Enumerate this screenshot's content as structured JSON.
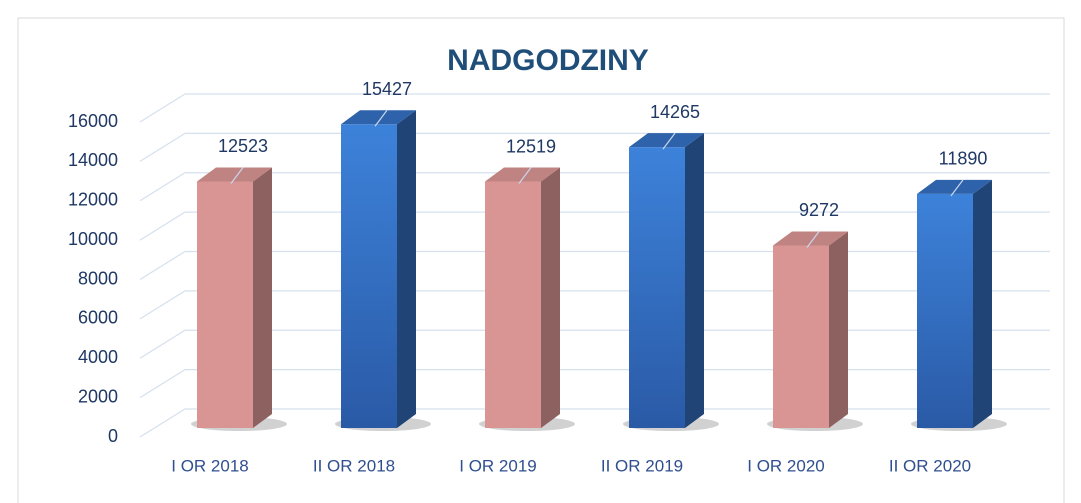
{
  "chart_data": {
    "type": "bar",
    "title": "NADGODZINY",
    "categories": [
      "I OR 2018",
      "II OR 2018",
      "I OR 2019",
      "II OR 2019",
      "I OR 2020",
      "II OR 2020"
    ],
    "values": [
      12523,
      15427,
      12519,
      14265,
      9272,
      11890
    ],
    "colors": [
      "#d99594",
      "#3a7bd5",
      "#d99594",
      "#3a7bd5",
      "#d99594",
      "#3a7bd5"
    ],
    "ylim": [
      0,
      16000
    ],
    "yticks": [
      0,
      2000,
      4000,
      6000,
      8000,
      10000,
      12000,
      14000,
      16000
    ],
    "grid": true
  }
}
